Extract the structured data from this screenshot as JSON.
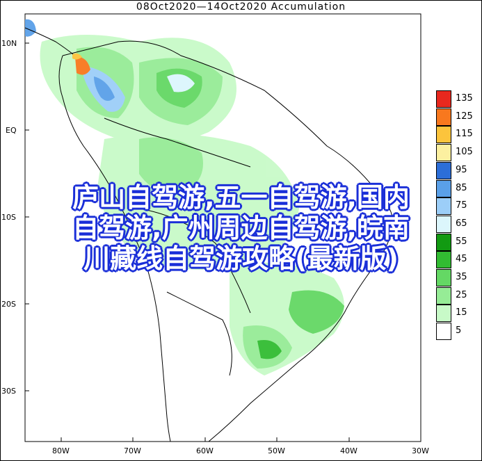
{
  "title": "08Oct2020—14Oct2020 Accumulation",
  "axes": {
    "lat_labels": [
      "10N",
      "EQ",
      "10S",
      "20S",
      "30S"
    ],
    "lon_labels": [
      "80W",
      "70W",
      "60W",
      "50W",
      "40W",
      "30W"
    ]
  },
  "legend": {
    "levels": [
      {
        "value": "135",
        "color": "#e8281e"
      },
      {
        "value": "125",
        "color": "#f8781e"
      },
      {
        "value": "115",
        "color": "#fcc43c"
      },
      {
        "value": "105",
        "color": "#fcf0a0"
      },
      {
        "value": "95",
        "color": "#2c6ed8"
      },
      {
        "value": "85",
        "color": "#5aa0e8"
      },
      {
        "value": "75",
        "color": "#9ccef8"
      },
      {
        "value": "65",
        "color": "#dcf6fc"
      },
      {
        "value": "55",
        "color": "#129a12"
      },
      {
        "value": "45",
        "color": "#32bc32"
      },
      {
        "value": "35",
        "color": "#64d864"
      },
      {
        "value": "25",
        "color": "#96ec96"
      },
      {
        "value": "15",
        "color": "#c8fac8"
      },
      {
        "value": "5",
        "color": "#ffffff"
      }
    ]
  },
  "overlay": {
    "line1": "庐山自驾游,五一自驾游,国内",
    "line2": "自驾游,广州周边自驾游,皖南",
    "line3": "川藏线自驾游攻略(最新版)"
  }
}
